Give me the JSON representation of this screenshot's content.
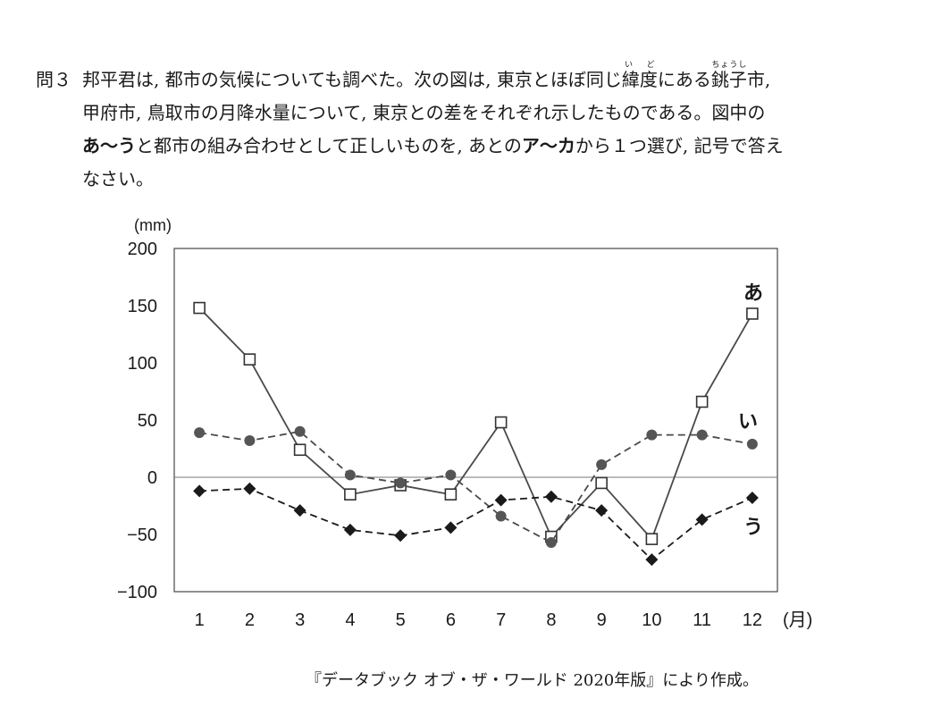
{
  "question": {
    "number": "問３",
    "line1_a": "邦平君は, 都市の気候についても調べた。次の図は, 東京とほぼ同じ",
    "ruby1_base": "緯度",
    "ruby1_reading": "い ど",
    "line1_b": "にある",
    "ruby2_base": "銚子",
    "ruby2_reading": "ちょうし",
    "line1_c": "市,",
    "line2": "甲府市, 鳥取市の月降水量について, 東京との差をそれぞれ示したものである。図中の",
    "line3_bold1": "あ〜う",
    "line3_a": "と都市の組み合わせとして正しいものを, あとの",
    "line3_bold2": "ア〜カ",
    "line3_b": "から１つ選び, 記号で答え",
    "line4": "なさい。"
  },
  "source": "『データブック オブ・ザ・ワールド 2020年版』により作成。",
  "chart_data": {
    "type": "line",
    "y_unit_label": "(mm)",
    "x_unit_label": "(月)",
    "categories": [
      "1",
      "2",
      "3",
      "4",
      "5",
      "6",
      "7",
      "8",
      "9",
      "10",
      "11",
      "12"
    ],
    "ylim": [
      -100,
      200
    ],
    "yticks": [
      200,
      150,
      100,
      50,
      0,
      -50,
      -100
    ],
    "zero_line": true,
    "grid": false,
    "series": [
      {
        "name": "あ",
        "marker": "open-square",
        "line": "solid",
        "color": "#4a4a4a",
        "values": [
          148,
          103,
          24,
          -15,
          -7,
          -15,
          48,
          -52,
          -5,
          -54,
          66,
          143
        ]
      },
      {
        "name": "い",
        "marker": "filled-circle",
        "line": "dashed",
        "color": "#4a4a4a",
        "values": [
          39,
          32,
          40,
          2,
          -5,
          2,
          -34,
          -57,
          11,
          37,
          37,
          29
        ]
      },
      {
        "name": "う",
        "marker": "filled-diamond",
        "line": "dashed",
        "color": "#1a1a1a",
        "values": [
          -12,
          -10,
          -29,
          -46,
          -51,
          -44,
          -20,
          -17,
          -29,
          -72,
          -37,
          -18
        ]
      }
    ]
  }
}
